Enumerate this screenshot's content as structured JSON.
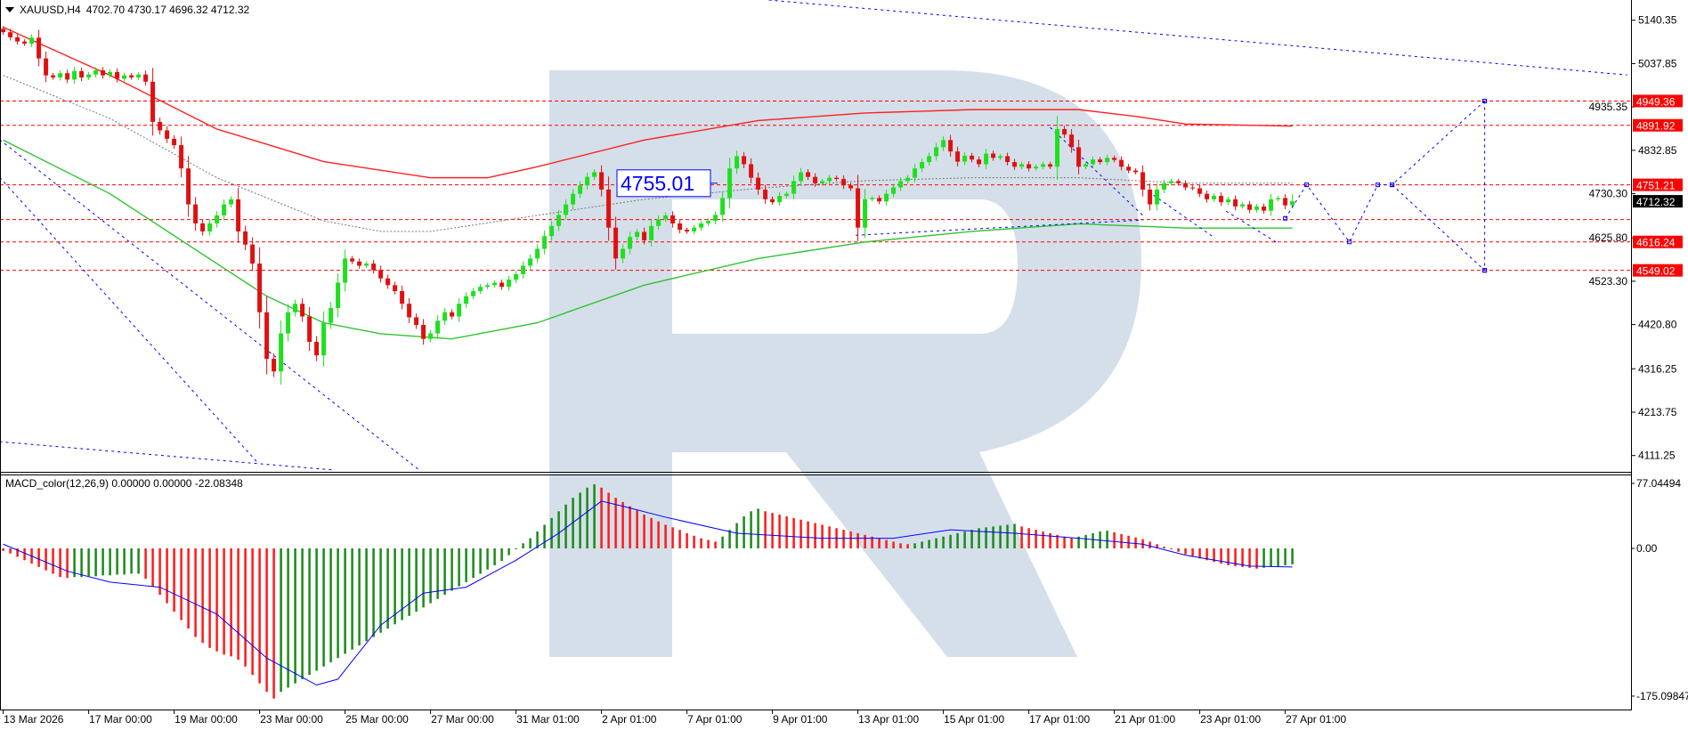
{
  "header": {
    "symbol": "XAUUSD,H4",
    "ohlc": "4702.70 4730.17 4696.32 4712.32"
  },
  "macd_header": {
    "name": "MACD_color(12,26,9)",
    "values": "0.00000 0.00000 -22.08348"
  },
  "annotation": {
    "label": "4755.01",
    "price": 4755.01
  },
  "colors": {
    "bull_candle": "#1ee01e",
    "bear_candle": "#e01010",
    "ma_slow": "#ff2020",
    "ma_fast": "#2ec42e",
    "ma_dotted": "#777777",
    "level_line": "#ff0000",
    "trend_line": "#0000ff",
    "macd_up": "#1a8a1a",
    "macd_down": "#ff1a1a",
    "macd_signal": "#0000ff",
    "watermark": "#d5dfea",
    "current_price_bg": "#000000",
    "level_label_bg": "#ff0000"
  },
  "chart_data": [
    {
      "type": "candlestick",
      "symbol": "XAUUSD",
      "timeframe": "H4",
      "first_open": 5120,
      "closes": [
        5112,
        5100,
        5090,
        5085,
        5099,
        5050,
        5010,
        5005,
        5015,
        5000,
        5020,
        5005,
        5012,
        5022,
        5010,
        5018,
        5002,
        5010,
        5005,
        5012,
        4995,
        4900,
        4880,
        4860,
        4845,
        4790,
        4705,
        4660,
        4641,
        4660,
        4679,
        4705,
        4717,
        4641,
        4610,
        4565,
        4450,
        4340,
        4310,
        4400,
        4450,
        4470,
        4440,
        4380,
        4348,
        4425,
        4460,
        4520,
        4577,
        4570,
        4560,
        4565,
        4550,
        4530,
        4514,
        4500,
        4470,
        4438,
        4420,
        4387,
        4400,
        4430,
        4450,
        4440,
        4470,
        4488,
        4500,
        4510,
        4514,
        4520,
        4510,
        4527,
        4540,
        4560,
        4577,
        4600,
        4630,
        4654,
        4680,
        4705,
        4730,
        4750,
        4770,
        4781,
        4740,
        4650,
        4577,
        4600,
        4628,
        4640,
        4620,
        4654,
        4670,
        4679,
        4660,
        4645,
        4641,
        4650,
        4660,
        4666,
        4680,
        4720,
        4790,
        4819,
        4800,
        4768,
        4740,
        4717,
        4710,
        4725,
        4730,
        4760,
        4781,
        4770,
        4755,
        4760,
        4768,
        4765,
        4750,
        4743,
        4650,
        4717,
        4720,
        4712,
        4730,
        4745,
        4760,
        4768,
        4790,
        4805,
        4819,
        4840,
        4857,
        4830,
        4806,
        4820,
        4811,
        4800,
        4825,
        4815,
        4819,
        4805,
        4794,
        4800,
        4790,
        4794,
        4800,
        4794,
        4883,
        4870,
        4840,
        4794,
        4800,
        4811,
        4805,
        4815,
        4810,
        4794,
        4785,
        4781,
        4740,
        4705,
        4740,
        4755,
        4760,
        4755,
        4745,
        4743,
        4730,
        4717,
        4725,
        4710,
        4717,
        4700,
        4705,
        4692,
        4700,
        4690,
        4717,
        4720,
        4702.7,
        4712.32
      ],
      "last_candle": {
        "open": 4702.7,
        "high": 4730.17,
        "low": 4696.32,
        "close": 4712.32
      },
      "current_price": "4712.32",
      "moving_averages": [
        {
          "style": "solid",
          "color_key": "ma_slow",
          "points": [
            [
              0,
              5124
            ],
            [
              15,
              5010
            ],
            [
              30,
              4883
            ],
            [
              45,
              4806
            ],
            [
              60,
              4768
            ],
            [
              68,
              4768
            ],
            [
              75,
              4794
            ],
            [
              90,
              4857
            ],
            [
              106,
              4903
            ],
            [
              121,
              4921
            ],
            [
              136,
              4929
            ],
            [
              151,
              4929
            ],
            [
              159,
              4913
            ],
            [
              166,
              4895
            ],
            [
              181,
              4890
            ]
          ]
        },
        {
          "style": "solid",
          "color_key": "ma_fast",
          "points": [
            [
              0,
              4857
            ],
            [
              15,
              4730
            ],
            [
              30,
              4565
            ],
            [
              37,
              4488
            ],
            [
              45,
              4425
            ],
            [
              53,
              4399
            ],
            [
              63,
              4387
            ],
            [
              75,
              4425
            ],
            [
              90,
              4514
            ],
            [
              106,
              4577
            ],
            [
              121,
              4616
            ],
            [
              136,
              4641
            ],
            [
              151,
              4659
            ],
            [
              166,
              4649
            ],
            [
              181,
              4649
            ]
          ]
        },
        {
          "style": "dotted",
          "color_key": "ma_dotted",
          "points": [
            [
              0,
              5010
            ],
            [
              15,
              4908
            ],
            [
              30,
              4768
            ],
            [
              45,
              4666
            ],
            [
              53,
              4641
            ],
            [
              60,
              4641
            ],
            [
              75,
              4679
            ],
            [
              90,
              4717
            ],
            [
              106,
              4743
            ],
            [
              121,
              4761
            ],
            [
              136,
              4768
            ],
            [
              151,
              4768
            ],
            [
              166,
              4755
            ],
            [
              181,
              4755
            ]
          ]
        }
      ],
      "levels": [
        {
          "price": 4949.36,
          "label": "4949.36"
        },
        {
          "price": 4891.92,
          "label": "4891.92"
        },
        {
          "price": 4751.21,
          "label": "4751.21"
        },
        {
          "price": 4669,
          "label": ""
        },
        {
          "price": 4616.24,
          "label": "4616.24"
        },
        {
          "price": 4549.02,
          "label": "4549.02"
        }
      ],
      "trendlines": [
        [
          [
            107.5,
            5188
          ],
          [
            228,
            5011
          ]
        ],
        [
          [
            -0.5,
            4769
          ],
          [
            35.8,
            4093
          ]
        ],
        [
          [
            -0.5,
            4858
          ],
          [
            58.4,
            4077
          ]
        ],
        [
          [
            -0.5,
            4144
          ],
          [
            46.4,
            4077
          ]
        ],
        [
          [
            119.7,
            4632
          ],
          [
            160,
            4668
          ]
        ],
        [
          [
            147,
            4887
          ],
          [
            160,
            4679
          ]
        ],
        [
          [
            160.8,
            4735
          ],
          [
            169.9,
            4628
          ]
        ],
        [
          [
            171.7,
            4689
          ],
          [
            178.9,
            4614
          ]
        ]
      ],
      "forecast": [
        [
          [
            180,
            4672
          ],
          [
            183,
            4751.21
          ],
          [
            189,
            4616.24
          ],
          [
            193,
            4751.21
          ],
          [
            195,
            4751.21
          ],
          [
            208,
            4949.36
          ]
        ],
        [
          [
            195,
            4751.21
          ],
          [
            208,
            4549.02
          ]
        ],
        [
          [
            208,
            4949.36
          ],
          [
            208,
            4549.02
          ]
        ]
      ],
      "y_ticks": [
        "5140.35",
        "5037.85",
        "4935.35",
        "4832.85",
        "4730.30",
        "4625.80",
        "4523.30",
        "4420.80",
        "4316.25",
        "4213.75",
        "4111.25"
      ],
      "x_ticks": [
        "13 Mar 2026",
        "17 Mar 00:00",
        "19 Mar 00:00",
        "23 Mar 00:00",
        "25 Mar 00:00",
        "27 Mar 00:00",
        "31 Mar 01:00",
        "2 Apr 01:00",
        "7 Apr 01:00",
        "9 Apr 01:00",
        "13 Apr 01:00",
        "15 Apr 01:00",
        "17 Apr 01:00",
        "21 Apr 01:00",
        "23 Apr 01:00",
        "27 Apr 01:00"
      ]
    },
    {
      "type": "bar",
      "name": "MACD_color(12,26,9)",
      "ylim": [
        -175.09847,
        77.04494
      ],
      "y_ticks": [
        "77.04494",
        "0.00",
        "-175.09847"
      ],
      "histogram": [
        -3,
        -6,
        -10,
        -14,
        -18,
        -22,
        -26,
        -30,
        -34,
        -35,
        -34,
        -34,
        -33,
        -33,
        -32,
        -32,
        -31,
        -31,
        -30,
        -30,
        -36,
        -45,
        -55,
        -65,
        -75,
        -85,
        -95,
        -105,
        -112,
        -118,
        -122,
        -126,
        -128,
        -132,
        -140,
        -150,
        -160,
        -170,
        -178,
        -170,
        -165,
        -160,
        -155,
        -150,
        -145,
        -140,
        -135,
        -130,
        -125,
        -120,
        -115,
        -110,
        -105,
        -100,
        -95,
        -90,
        -85,
        -80,
        -75,
        -70,
        -65,
        -60,
        -55,
        -50,
        -45,
        -40,
        -35,
        -30,
        -25,
        -20,
        -15,
        -8,
        0,
        6,
        12,
        20,
        28,
        36,
        44,
        52,
        60,
        66,
        72,
        76,
        72,
        66,
        60,
        55,
        50,
        45,
        40,
        36,
        32,
        28,
        25,
        22,
        18,
        15,
        12,
        10,
        8,
        14,
        22,
        30,
        38,
        44,
        47,
        44,
        42,
        40,
        38,
        36,
        34,
        32,
        30,
        28,
        26,
        24,
        22,
        20,
        18,
        16,
        14,
        12,
        10,
        8,
        6,
        5,
        6,
        8,
        10,
        12,
        14,
        16,
        18,
        20,
        22,
        24,
        25,
        26,
        27,
        28,
        29,
        26,
        24,
        22,
        20,
        18,
        16,
        14,
        12,
        14,
        16,
        18,
        20,
        21,
        19,
        17,
        15,
        13,
        11,
        8,
        5,
        2,
        -1,
        -4,
        -7,
        -10,
        -12,
        -14,
        -16,
        -18,
        -20,
        -21,
        -22,
        -23,
        -24,
        -23,
        -22,
        -21,
        -20,
        -19
      ],
      "signal": [
        [
          0,
          5
        ],
        [
          9,
          -27
        ],
        [
          15,
          -40
        ],
        [
          22,
          -46
        ],
        [
          30,
          -78
        ],
        [
          37,
          -130
        ],
        [
          44,
          -162
        ],
        [
          47,
          -155
        ],
        [
          53,
          -91
        ],
        [
          59,
          -53
        ],
        [
          65,
          -46
        ],
        [
          72,
          -14
        ],
        [
          78,
          18
        ],
        [
          84,
          56
        ],
        [
          87,
          50
        ],
        [
          93,
          37
        ],
        [
          103,
          18
        ],
        [
          115,
          12
        ],
        [
          125,
          12
        ],
        [
          133,
          22
        ],
        [
          142,
          18
        ],
        [
          151,
          12
        ],
        [
          160,
          5
        ],
        [
          166,
          -8
        ],
        [
          175,
          -21
        ],
        [
          181,
          -22.08
        ]
      ]
    }
  ]
}
